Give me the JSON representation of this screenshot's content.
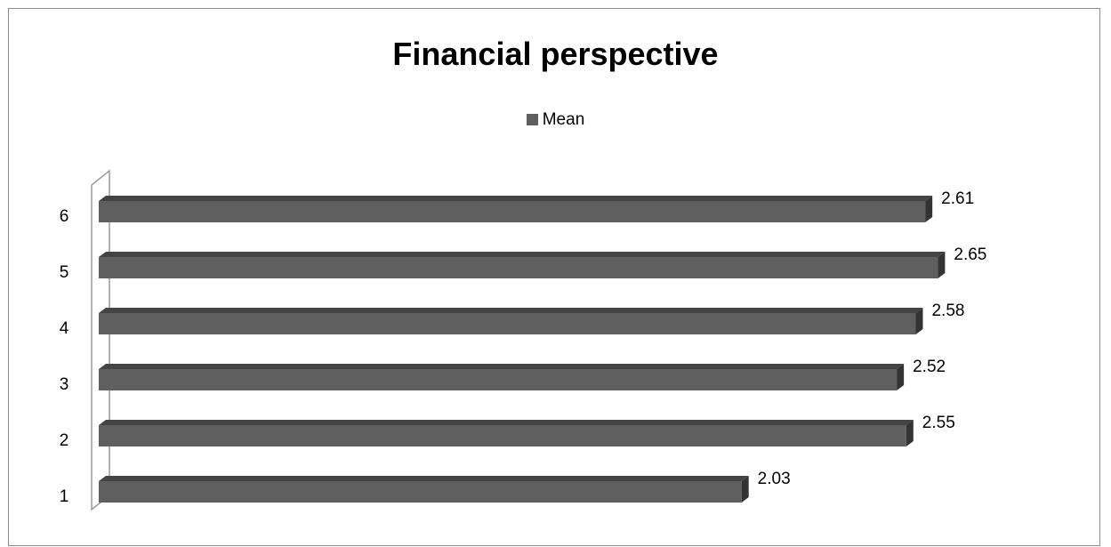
{
  "chart_data": {
    "type": "bar",
    "orientation": "horizontal",
    "title": "Financial perspective",
    "categories": [
      "1",
      "2",
      "3",
      "4",
      "5",
      "6"
    ],
    "series": [
      {
        "name": "Mean",
        "values": [
          2.03,
          2.55,
          2.52,
          2.58,
          2.65,
          2.61
        ]
      }
    ],
    "data_labels": [
      "2.03",
      "2.55",
      "2.52",
      "2.58",
      "2.65",
      "2.61"
    ],
    "xlim": [
      0,
      2.7
    ],
    "legend_position": "top",
    "grid": false,
    "bar_color": "#5f5f5f",
    "bar_top_color": "#444444",
    "bar_end_color": "#333333"
  }
}
